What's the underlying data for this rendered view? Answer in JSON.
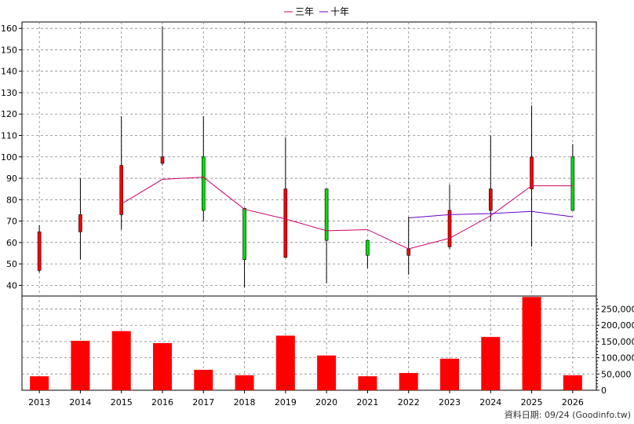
{
  "legend": {
    "series1": "三年",
    "series2": "十年"
  },
  "colors": {
    "up": "#ff0000",
    "down": "#00dd00",
    "line3": "#cc0066",
    "line10": "#6600cc",
    "volume": "#ff0000",
    "grid": "#888888"
  },
  "footer": {
    "text": "資料日期: 09/24  (Goodinfo.tw)"
  },
  "chart_data": [
    {
      "type": "candlestick",
      "title": "",
      "categories": [
        "2013",
        "2014",
        "2015",
        "2016",
        "2017",
        "2018",
        "2019",
        "2020",
        "2021",
        "2022",
        "2023",
        "2024",
        "2025",
        "2026"
      ],
      "ylim": [
        35,
        163
      ],
      "yticks": [
        40,
        50,
        60,
        70,
        80,
        90,
        100,
        110,
        120,
        130,
        140,
        150,
        160
      ],
      "grid": true,
      "ohlc": [
        {
          "open": 47,
          "high": 68,
          "low": 46,
          "close": 65
        },
        {
          "open": 65,
          "high": 90,
          "low": 52,
          "close": 73
        },
        {
          "open": 73,
          "high": 119,
          "low": 66,
          "close": 96
        },
        {
          "open": 97,
          "high": 161,
          "low": 96,
          "close": 100
        },
        {
          "open": 100,
          "high": 119,
          "low": 70,
          "close": 75
        },
        {
          "open": 76,
          "high": 76,
          "low": 39,
          "close": 52
        },
        {
          "open": 53,
          "high": 109,
          "low": 53,
          "close": 85
        },
        {
          "open": 85,
          "high": 85,
          "low": 41,
          "close": 61
        },
        {
          "open": 61,
          "high": 61,
          "low": 48,
          "close": 54
        },
        {
          "open": 54,
          "high": 72,
          "low": 45,
          "close": 57
        },
        {
          "open": 58,
          "high": 87,
          "low": 57,
          "close": 75
        },
        {
          "open": 75,
          "high": 110,
          "low": 70,
          "close": 85
        },
        {
          "open": 85,
          "high": 124,
          "low": 58,
          "close": 100
        },
        {
          "open": 100,
          "high": 106,
          "low": 75,
          "close": 75
        }
      ],
      "series": [
        {
          "name": "三年",
          "values": [
            null,
            null,
            78,
            89.5,
            90.5,
            75.5,
            71,
            65.5,
            66,
            57,
            62,
            72.5,
            86.5,
            86.5
          ]
        },
        {
          "name": "十年",
          "values": [
            null,
            null,
            null,
            null,
            null,
            null,
            null,
            null,
            null,
            71.5,
            73,
            73.5,
            74.5,
            72
          ]
        }
      ]
    },
    {
      "type": "bar",
      "title": "",
      "categories": [
        "2013",
        "2014",
        "2015",
        "2016",
        "2017",
        "2018",
        "2019",
        "2020",
        "2021",
        "2022",
        "2023",
        "2024",
        "2025",
        "2026"
      ],
      "values": [
        43000,
        152000,
        182000,
        145000,
        63000,
        46000,
        168000,
        107000,
        43000,
        53000,
        97000,
        164000,
        287000,
        46000
      ],
      "ylim": [
        0,
        290000
      ],
      "yticks": [
        0,
        50000,
        100000,
        150000,
        200000,
        250000
      ],
      "ytick_labels": [
        "0",
        "50,000",
        "100,000",
        "150,000",
        "200,000",
        "250,000"
      ],
      "grid": true
    }
  ]
}
